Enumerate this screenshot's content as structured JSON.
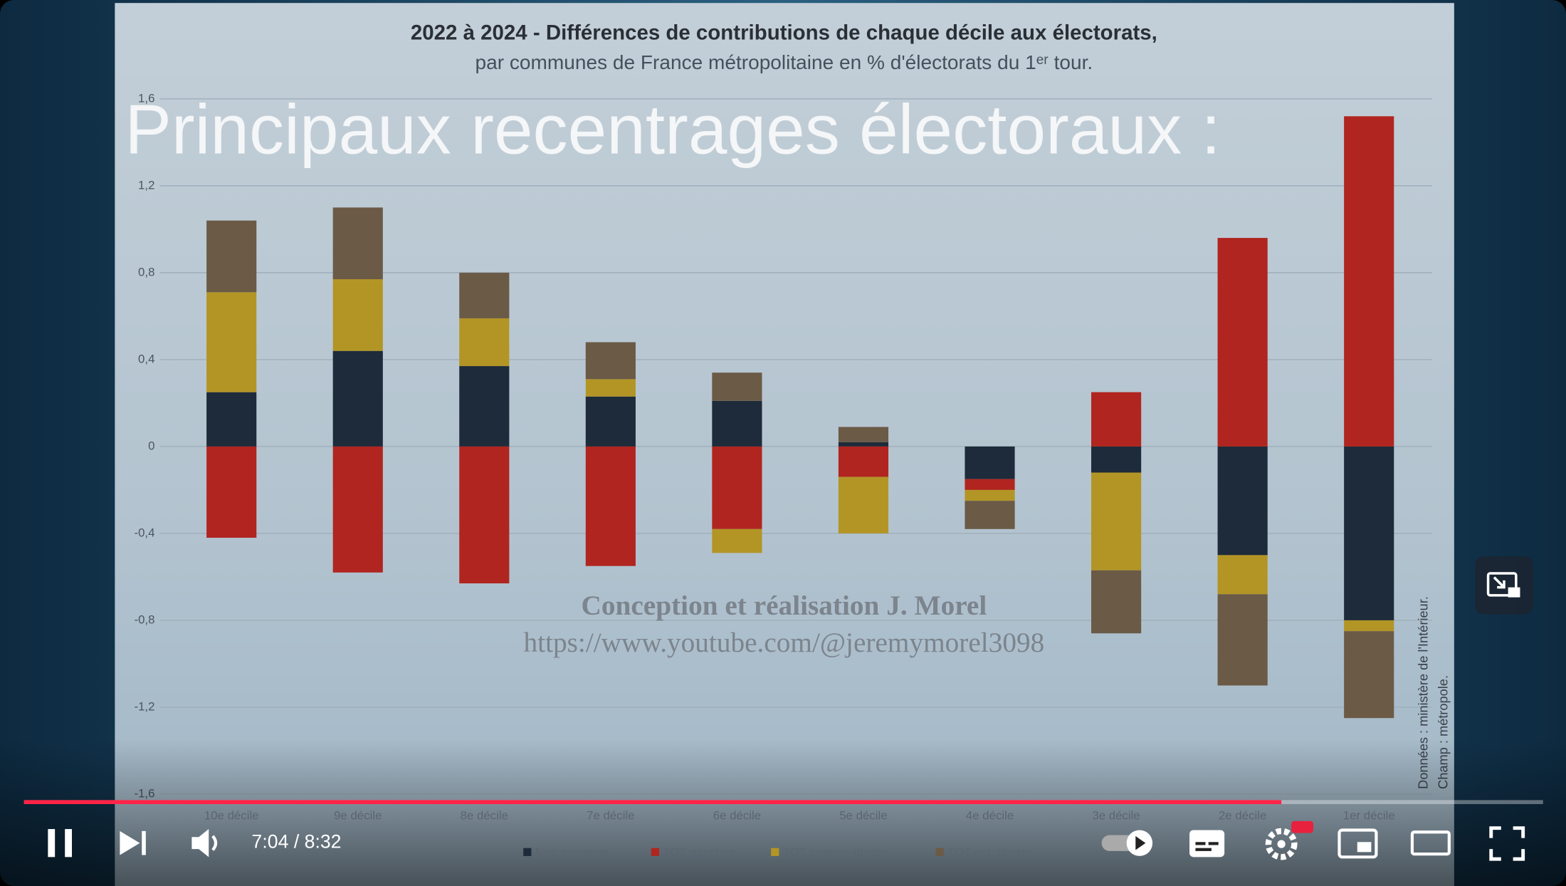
{
  "overlay": {
    "title": "Principaux recentrages électoraux :"
  },
  "watermark": {
    "line1": "Conception et réalisation J. Morel",
    "line2": "https://www.youtube.com/@jeremymorel3098"
  },
  "source": {
    "line1": "Données : ministère de l'Intérieur.",
    "line2": "Champ : métropole."
  },
  "player": {
    "time": "7:04 / 8:32"
  },
  "chart_data": {
    "type": "stacked_bar",
    "title": "2022 à 2024 - Différences de contributions de chaque décile aux électorats,",
    "subtitle": "par communes de France métropolitaine en % d'électorats du 1ᵉʳ tour.",
    "categories": [
      "10e décile",
      "9e décile",
      "8e décile",
      "7e décile",
      "6e décile",
      "5e décile",
      "4e décile",
      "3e décile",
      "2e décile",
      "1er décile"
    ],
    "series": [
      {
        "name": "Non exprimés",
        "color": "#1e2b3a",
        "values": [
          0.25,
          0.44,
          0.37,
          0.23,
          0.21,
          0.02,
          -0.15,
          -0.12,
          -0.5,
          -0.8
        ]
      },
      {
        "name": "TOT gauches",
        "color": "#b0251f",
        "values": [
          -0.42,
          -0.58,
          -0.63,
          -0.55,
          -0.38,
          -0.14,
          -0.05,
          0.25,
          0.96,
          1.52
        ]
      },
      {
        "name": "TOT centres-droites",
        "color": "#b39525",
        "values": [
          0.46,
          0.33,
          0.22,
          0.08,
          -0.11,
          -0.26,
          -0.05,
          -0.45,
          -0.18,
          -0.05
        ]
      },
      {
        "name": "TOT ext. droites",
        "color": "#6b5a46",
        "values": [
          0.33,
          0.33,
          0.21,
          0.17,
          0.13,
          0.07,
          -0.13,
          -0.29,
          -0.42,
          -0.4
        ]
      }
    ],
    "ylim": [
      -1.6,
      1.6
    ],
    "yticks": [
      {
        "value": -1.6,
        "label": "-1,6"
      },
      {
        "value": -1.2,
        "label": "-1,2"
      },
      {
        "value": -0.8,
        "label": "-0,8"
      },
      {
        "value": -0.4,
        "label": "-0,4"
      },
      0,
      {
        "value": 0.4,
        "label": "0,4"
      },
      {
        "value": 0.8,
        "label": "0,8"
      },
      {
        "value": 1.2,
        "label": "1,2"
      },
      {
        "value": 1.6,
        "label": "1,6"
      }
    ],
    "grid": true
  }
}
